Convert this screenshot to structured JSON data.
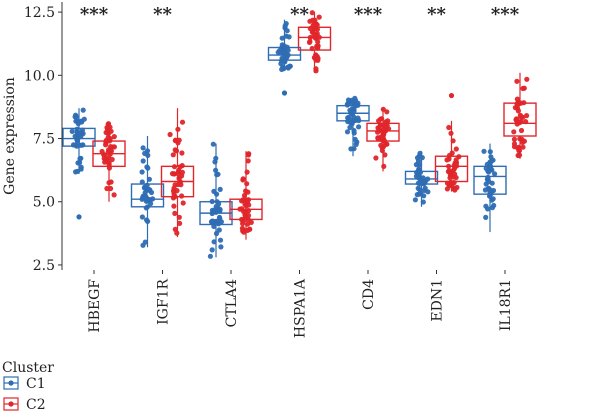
{
  "chart_data": {
    "type": "box",
    "ylabel": "Gene expression",
    "ylim": [
      2.3,
      12.9
    ],
    "yticks": [
      "2.5",
      "5.0",
      "7.5",
      "10.0",
      "12.5"
    ],
    "yticks_values": [
      2.5,
      5.0,
      7.5,
      10.0,
      12.5
    ],
    "categories": [
      "HBEGF",
      "IGF1R",
      "CTLA4",
      "HSPA1A",
      "CD4",
      "EDN1",
      "IL18R1"
    ],
    "significance": [
      "***",
      "**",
      "",
      "**",
      "***",
      "**",
      "***"
    ],
    "legend": {
      "title": "Cluster",
      "position": "bottom-left",
      "entries": [
        "C1",
        "C2"
      ]
    },
    "colors": {
      "C1": "#2e6db4",
      "C2": "#e0262b"
    },
    "series": [
      {
        "name": "C1",
        "boxes": [
          {
            "category": "HBEGF",
            "min": 6.1,
            "q1": 7.2,
            "median": 7.5,
            "q3": 7.9,
            "max": 8.7,
            "outliers": [
              4.4
            ]
          },
          {
            "category": "IGF1R",
            "min": 3.2,
            "q1": 4.8,
            "median": 5.1,
            "q3": 5.7,
            "max": 7.6,
            "outliers": []
          },
          {
            "category": "CTLA4",
            "min": 2.8,
            "q1": 4.1,
            "median": 4.55,
            "q3": 5.0,
            "max": 7.3,
            "outliers": []
          },
          {
            "category": "HSPA1A",
            "min": 10.2,
            "q1": 10.6,
            "median": 10.8,
            "q3": 11.1,
            "max": 12.2,
            "outliers": [
              9.3
            ]
          },
          {
            "category": "CD4",
            "min": 6.8,
            "q1": 8.2,
            "median": 8.5,
            "q3": 8.8,
            "max": 9.1,
            "outliers": []
          },
          {
            "category": "EDN1",
            "min": 4.8,
            "q1": 5.7,
            "median": 5.9,
            "q3": 6.2,
            "max": 7.0,
            "outliers": []
          },
          {
            "category": "IL18R1",
            "min": 3.8,
            "q1": 5.3,
            "median": 6.0,
            "q3": 6.4,
            "max": 7.3,
            "outliers": []
          }
        ]
      },
      {
        "name": "C2",
        "boxes": [
          {
            "category": "HBEGF",
            "min": 5.0,
            "q1": 6.4,
            "median": 6.9,
            "q3": 7.4,
            "max": 8.1,
            "outliers": []
          },
          {
            "category": "IGF1R",
            "min": 3.6,
            "q1": 5.2,
            "median": 5.8,
            "q3": 6.4,
            "max": 8.7,
            "outliers": []
          },
          {
            "category": "CTLA4",
            "min": 3.5,
            "q1": 4.3,
            "median": 4.7,
            "q3": 5.1,
            "max": 7.0,
            "outliers": []
          },
          {
            "category": "HSPA1A",
            "min": 10.1,
            "q1": 11.0,
            "median": 11.5,
            "q3": 11.9,
            "max": 12.5,
            "outliers": []
          },
          {
            "category": "CD4",
            "min": 6.2,
            "q1": 7.4,
            "median": 7.8,
            "q3": 8.1,
            "max": 8.7,
            "outliers": []
          },
          {
            "category": "EDN1",
            "min": 5.4,
            "q1": 5.8,
            "median": 6.4,
            "q3": 6.8,
            "max": 8.2,
            "outliers": [
              9.2
            ]
          },
          {
            "category": "IL18R1",
            "min": 6.7,
            "q1": 7.6,
            "median": 8.1,
            "q3": 8.9,
            "max": 10.1,
            "outliers": []
          }
        ]
      }
    ]
  }
}
